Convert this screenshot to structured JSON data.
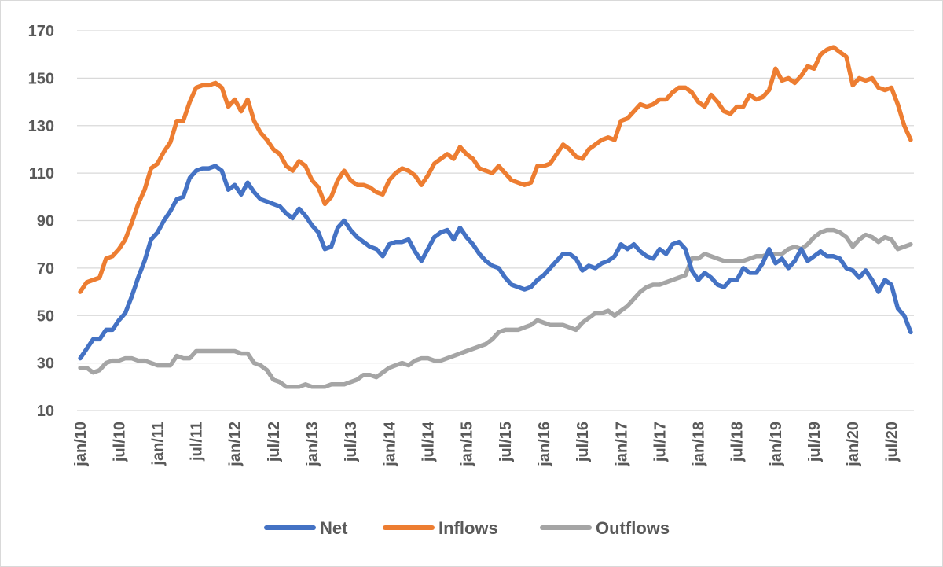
{
  "chart_data": {
    "type": "line",
    "title": "",
    "xlabel": "",
    "ylabel": "",
    "ylim": [
      10,
      170
    ],
    "yticks": [
      10,
      30,
      50,
      70,
      90,
      110,
      130,
      150,
      170
    ],
    "x_tick_labels": [
      "jan/10",
      "jul/10",
      "jan/11",
      "jul/11",
      "jan/12",
      "jul/12",
      "jan/13",
      "jul/13",
      "jan/14",
      "jul/14",
      "jan/15",
      "jul/15",
      "jan/16",
      "jul/16",
      "jan/17",
      "jul/17",
      "jan/18",
      "jul/18",
      "jan/19",
      "jul/19",
      "jan/20",
      "jul/20"
    ],
    "x_start": "2010-01",
    "x_end": "2020-10",
    "grid": true,
    "legend_position": "bottom",
    "series": [
      {
        "name": "Net",
        "color": "#4472C4",
        "values": [
          32,
          36,
          40,
          40,
          44,
          44,
          48,
          51,
          58,
          66,
          73,
          82,
          85,
          90,
          94,
          99,
          100,
          108,
          111,
          112,
          112,
          113,
          111,
          103,
          105,
          101,
          106,
          102,
          99,
          98,
          97,
          96,
          93,
          91,
          95,
          92,
          88,
          85,
          78,
          79,
          87,
          90,
          86,
          83,
          81,
          79,
          78,
          75,
          80,
          81,
          81,
          82,
          77,
          73,
          78,
          83,
          85,
          86,
          82,
          87,
          83,
          80,
          76,
          73,
          71,
          70,
          66,
          63,
          62,
          61,
          62,
          65,
          67,
          70,
          73,
          76,
          76,
          74,
          69,
          71,
          70,
          72,
          73,
          75,
          80,
          78,
          80,
          77,
          75,
          74,
          78,
          76,
          80,
          81,
          78,
          69,
          65,
          68,
          66,
          63,
          62,
          65,
          65,
          70,
          68,
          68,
          72,
          78,
          72,
          74,
          70,
          73,
          78,
          73,
          75,
          77,
          75,
          75,
          74,
          70,
          69,
          66,
          69,
          65,
          60,
          65,
          63,
          53,
          50,
          43
        ]
      },
      {
        "name": "Inflows",
        "color": "#ED7D31",
        "values": [
          60,
          64,
          65,
          66,
          74,
          75,
          78,
          82,
          89,
          97,
          103,
          112,
          114,
          119,
          123,
          132,
          132,
          140,
          146,
          147,
          147,
          148,
          146,
          138,
          141,
          136,
          141,
          132,
          127,
          124,
          120,
          118,
          113,
          111,
          115,
          113,
          107,
          104,
          97,
          100,
          107,
          111,
          107,
          105,
          105,
          104,
          102,
          101,
          107,
          110,
          112,
          111,
          109,
          105,
          109,
          114,
          116,
          118,
          116,
          121,
          118,
          116,
          112,
          111,
          110,
          113,
          110,
          107,
          106,
          105,
          106,
          113,
          113,
          114,
          118,
          122,
          120,
          117,
          116,
          120,
          122,
          124,
          125,
          124,
          132,
          133,
          136,
          139,
          138,
          139,
          141,
          141,
          144,
          146,
          146,
          144,
          140,
          138,
          143,
          140,
          136,
          135,
          138,
          138,
          143,
          141,
          142,
          145,
          154,
          149,
          150,
          148,
          151,
          155,
          154,
          160,
          162,
          163,
          161,
          159,
          147,
          150,
          149,
          150,
          146,
          145,
          146,
          139,
          130,
          124
        ]
      },
      {
        "name": "Outflows",
        "color": "#A5A5A5",
        "values": [
          28,
          28,
          26,
          27,
          30,
          31,
          31,
          32,
          32,
          31,
          31,
          30,
          29,
          29,
          29,
          33,
          32,
          32,
          35,
          35,
          35,
          35,
          35,
          35,
          35,
          34,
          34,
          30,
          29,
          27,
          23,
          22,
          20,
          20,
          20,
          21,
          20,
          20,
          20,
          21,
          21,
          21,
          22,
          23,
          25,
          25,
          24,
          26,
          28,
          29,
          30,
          29,
          31,
          32,
          32,
          31,
          31,
          32,
          33,
          34,
          35,
          36,
          37,
          38,
          40,
          43,
          44,
          44,
          44,
          45,
          46,
          48,
          47,
          46,
          46,
          46,
          45,
          44,
          47,
          49,
          51,
          51,
          52,
          50,
          52,
          54,
          57,
          60,
          62,
          63,
          63,
          64,
          65,
          66,
          67,
          74,
          74,
          76,
          75,
          74,
          73,
          73,
          73,
          73,
          74,
          75,
          75,
          76,
          76,
          76,
          78,
          79,
          78,
          80,
          83,
          85,
          86,
          86,
          85,
          83,
          79,
          82,
          84,
          83,
          81,
          83,
          82,
          78,
          79,
          80
        ]
      }
    ]
  }
}
